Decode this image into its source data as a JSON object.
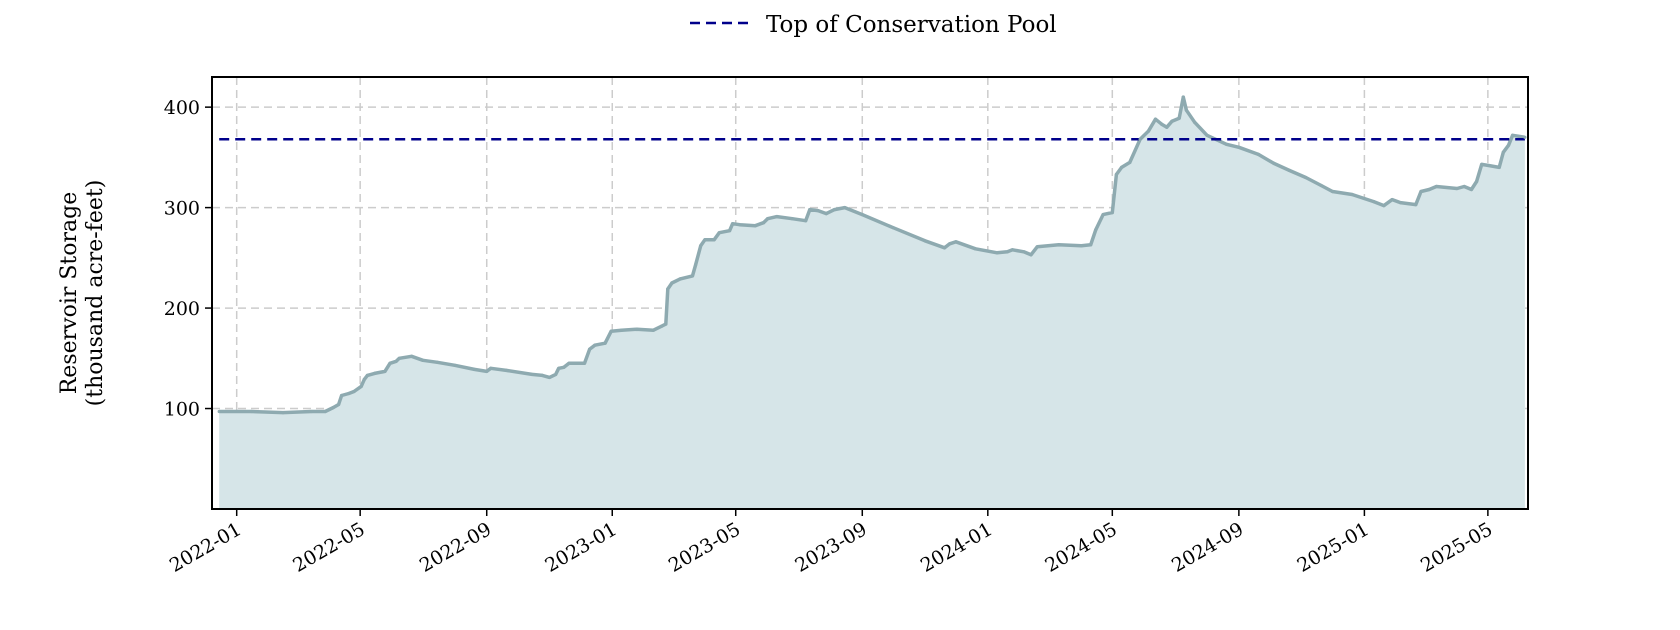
{
  "chart_data": {
    "type": "area",
    "ylabel_lines": [
      "Reservoir Storage",
      "(thousand acre-feet)"
    ],
    "xlim": [
      "2021-12-08",
      "2025-06-09"
    ],
    "ylim": [
      0,
      430
    ],
    "y_ticks": [
      100,
      200,
      300,
      400
    ],
    "x_ticks": [
      "2022-01",
      "2022-05",
      "2022-09",
      "2023-01",
      "2023-05",
      "2023-09",
      "2024-01",
      "2024-05",
      "2024-09",
      "2025-01",
      "2025-05"
    ],
    "grid": true,
    "legend_position": "top-center",
    "reference_line": {
      "name": "Top of Conservation Pool",
      "value": 368,
      "color": "#00008b",
      "style": "dashed"
    },
    "series": [
      {
        "color": "#8eaab0",
        "fill": "#d6e5e8",
        "points": [
          [
            "2021-12-15",
            97
          ],
          [
            "2022-01-15",
            97
          ],
          [
            "2022-02-15",
            96
          ],
          [
            "2022-03-15",
            97
          ],
          [
            "2022-03-28",
            97
          ],
          [
            "2022-04-01",
            99
          ],
          [
            "2022-04-05",
            101
          ],
          [
            "2022-04-10",
            104
          ],
          [
            "2022-04-13",
            113
          ],
          [
            "2022-04-20",
            115
          ],
          [
            "2022-04-25",
            117
          ],
          [
            "2022-05-02",
            122
          ],
          [
            "2022-05-05",
            129
          ],
          [
            "2022-05-08",
            133
          ],
          [
            "2022-05-15",
            135
          ],
          [
            "2022-05-25",
            137
          ],
          [
            "2022-05-30",
            145
          ],
          [
            "2022-06-05",
            147
          ],
          [
            "2022-06-08",
            150
          ],
          [
            "2022-06-20",
            152
          ],
          [
            "2022-07-01",
            148
          ],
          [
            "2022-07-15",
            146
          ],
          [
            "2022-08-01",
            143
          ],
          [
            "2022-08-20",
            139
          ],
          [
            "2022-09-01",
            137
          ],
          [
            "2022-09-05",
            140
          ],
          [
            "2022-09-20",
            138
          ],
          [
            "2022-10-15",
            134
          ],
          [
            "2022-10-25",
            133
          ],
          [
            "2022-11-01",
            131
          ],
          [
            "2022-11-07",
            134
          ],
          [
            "2022-11-10",
            140
          ],
          [
            "2022-11-15",
            141
          ],
          [
            "2022-11-20",
            145
          ],
          [
            "2022-12-05",
            145
          ],
          [
            "2022-12-10",
            159
          ],
          [
            "2022-12-15",
            163
          ],
          [
            "2022-12-25",
            165
          ],
          [
            "2022-12-31",
            177
          ],
          [
            "2023-01-10",
            178
          ],
          [
            "2023-01-25",
            179
          ],
          [
            "2023-02-10",
            178
          ],
          [
            "2023-02-18",
            182
          ],
          [
            "2023-02-22",
            184
          ],
          [
            "2023-02-24",
            219
          ],
          [
            "2023-02-28",
            225
          ],
          [
            "2023-03-08",
            229
          ],
          [
            "2023-03-20",
            232
          ],
          [
            "2023-03-23",
            243
          ],
          [
            "2023-03-28",
            262
          ],
          [
            "2023-04-01",
            268
          ],
          [
            "2023-04-10",
            268
          ],
          [
            "2023-04-15",
            275
          ],
          [
            "2023-04-25",
            277
          ],
          [
            "2023-04-28",
            284
          ],
          [
            "2023-05-05",
            283
          ],
          [
            "2023-05-20",
            282
          ],
          [
            "2023-05-28",
            285
          ],
          [
            "2023-06-01",
            289
          ],
          [
            "2023-06-10",
            291
          ],
          [
            "2023-06-25",
            289
          ],
          [
            "2023-07-08",
            287
          ],
          [
            "2023-07-12",
            298
          ],
          [
            "2023-07-20",
            297
          ],
          [
            "2023-07-28",
            294
          ],
          [
            "2023-08-05",
            298
          ],
          [
            "2023-08-15",
            300
          ],
          [
            "2023-09-01",
            293
          ],
          [
            "2023-10-01",
            280
          ],
          [
            "2023-11-01",
            267
          ],
          [
            "2023-11-20",
            260
          ],
          [
            "2023-11-25",
            264
          ],
          [
            "2023-12-01",
            266
          ],
          [
            "2023-12-20",
            259
          ],
          [
            "2024-01-10",
            255
          ],
          [
            "2024-01-20",
            256
          ],
          [
            "2024-01-25",
            258
          ],
          [
            "2024-02-05",
            256
          ],
          [
            "2024-02-12",
            253
          ],
          [
            "2024-02-18",
            261
          ],
          [
            "2024-03-10",
            263
          ],
          [
            "2024-04-01",
            262
          ],
          [
            "2024-04-10",
            263
          ],
          [
            "2024-04-15",
            278
          ],
          [
            "2024-04-22",
            293
          ],
          [
            "2024-05-01",
            295
          ],
          [
            "2024-05-05",
            333
          ],
          [
            "2024-05-10",
            340
          ],
          [
            "2024-05-18",
            345
          ],
          [
            "2024-05-28",
            368
          ],
          [
            "2024-06-05",
            376
          ],
          [
            "2024-06-12",
            388
          ],
          [
            "2024-06-18",
            383
          ],
          [
            "2024-06-23",
            380
          ],
          [
            "2024-06-28",
            386
          ],
          [
            "2024-07-05",
            389
          ],
          [
            "2024-07-09",
            410
          ],
          [
            "2024-07-12",
            397
          ],
          [
            "2024-07-20",
            385
          ],
          [
            "2024-08-01",
            372
          ],
          [
            "2024-08-20",
            363
          ],
          [
            "2024-09-01",
            360
          ],
          [
            "2024-09-20",
            353
          ],
          [
            "2024-10-05",
            344
          ],
          [
            "2024-10-20",
            337
          ],
          [
            "2024-11-05",
            330
          ],
          [
            "2024-11-20",
            322
          ],
          [
            "2024-12-01",
            316
          ],
          [
            "2024-12-20",
            313
          ],
          [
            "2025-01-10",
            306
          ],
          [
            "2025-01-20",
            302
          ],
          [
            "2025-01-28",
            308
          ],
          [
            "2025-02-05",
            305
          ],
          [
            "2025-02-20",
            303
          ],
          [
            "2025-02-25",
            316
          ],
          [
            "2025-03-05",
            318
          ],
          [
            "2025-03-12",
            321
          ],
          [
            "2025-04-01",
            319
          ],
          [
            "2025-04-08",
            321
          ],
          [
            "2025-04-15",
            318
          ],
          [
            "2025-04-20",
            326
          ],
          [
            "2025-04-25",
            343
          ],
          [
            "2025-05-01",
            342
          ],
          [
            "2025-05-12",
            340
          ],
          [
            "2025-05-16",
            355
          ],
          [
            "2025-05-21",
            362
          ],
          [
            "2025-05-25",
            372
          ],
          [
            "2025-06-06",
            370
          ]
        ]
      }
    ]
  }
}
